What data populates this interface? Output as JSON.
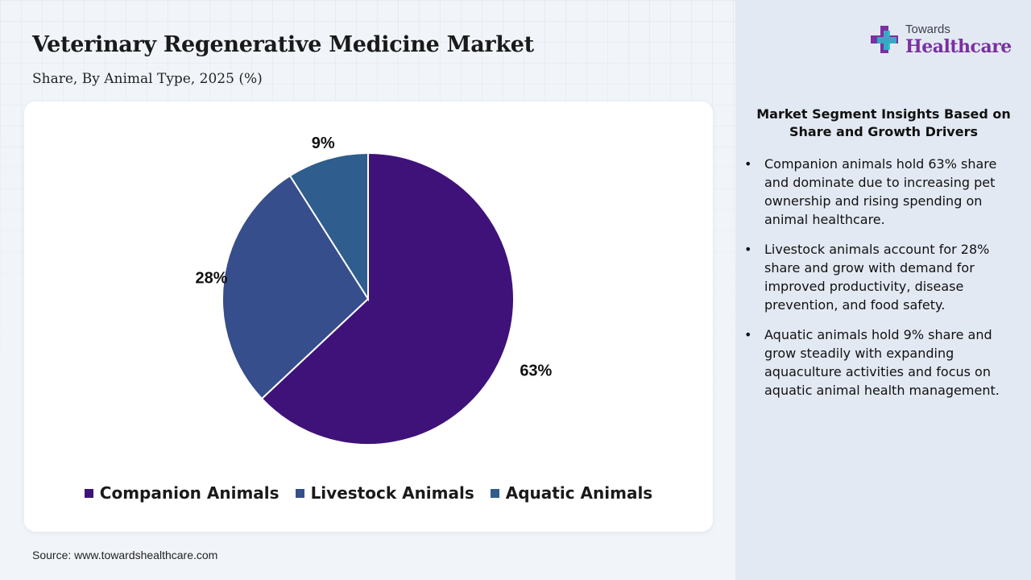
{
  "title": "Veterinary Regenerative Medicine Market",
  "subtitle": "Share, By Animal Type, 2025 (%)",
  "source": "Source: www.towardshealthcare.com",
  "logo": {
    "top": "Towards",
    "bottom": "Healthcare",
    "icon": "medical-cross-icon",
    "colors": {
      "primary": "#7b2fa0",
      "secondary": "#2fb8c9"
    }
  },
  "chart_data": {
    "type": "pie",
    "categories": [
      "Companion Animals",
      "Livestock Animals",
      "Aquatic Animals"
    ],
    "values": [
      63,
      28,
      9
    ],
    "labels": [
      "63%",
      "28%",
      "9%"
    ],
    "colors": [
      "#3f127a",
      "#374e8c",
      "#2e5d8e"
    ],
    "legend_position": "bottom"
  },
  "insights": {
    "title": "Market Segment Insights Based on Share and Growth Drivers",
    "bullet": "•",
    "items": [
      "Companion animals hold 63% share and dominate due to increasing pet ownership and rising spending on animal healthcare.",
      "Livestock animals account for 28% share and grow with demand for improved productivity, disease prevention, and food safety.",
      "Aquatic animals hold 9% share and grow steadily with expanding aquaculture activities and focus on aquatic animal health management."
    ]
  }
}
